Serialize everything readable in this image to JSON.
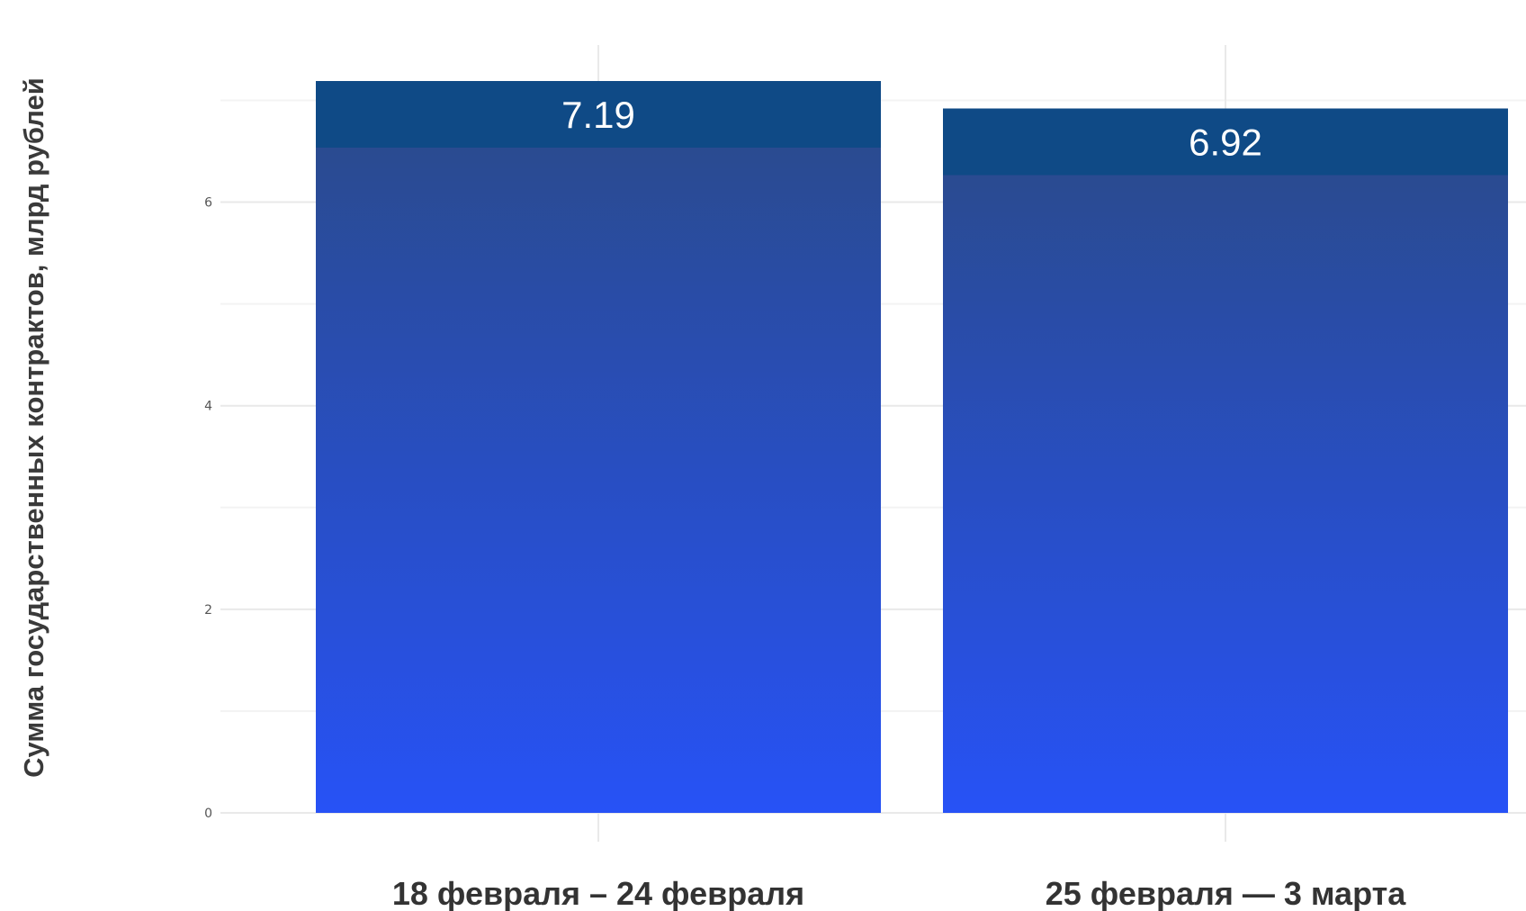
{
  "chart_data": {
    "type": "bar",
    "ylabel": "Сумма государственных контрактов, млрд рублей",
    "xlabel": "",
    "categories": [
      "18 февраля – 24 февраля",
      "25 февраля — 3 марта"
    ],
    "values": [
      7.19,
      6.92
    ],
    "data_labels": [
      "7.19",
      "6.92"
    ],
    "yticks": [
      0,
      2,
      4,
      6
    ],
    "ytick_labels": [
      "0",
      "2",
      "4",
      "6"
    ],
    "ylim": [
      0,
      7.55
    ],
    "grid": true,
    "legend": "none",
    "colors": {
      "bar_top": "#0f4a86",
      "bar_gradient_start": "#2a4a86",
      "bar_gradient_end": "#2752f6",
      "grid": "#e9e9e9"
    }
  }
}
